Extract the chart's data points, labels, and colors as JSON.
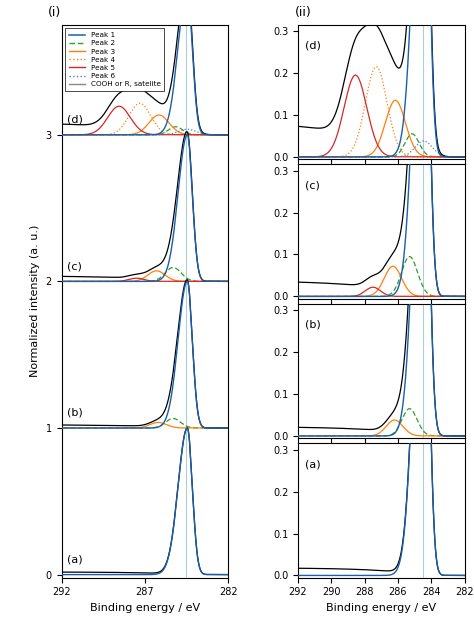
{
  "title_left": "(i)",
  "title_right": "(ii)",
  "xlabel_left": "Binding energy / eV",
  "xlabel_right": "Binding energy / eV",
  "ylabel": "Normalized intensity (a. u.)",
  "xlim_left": [
    292,
    282
  ],
  "xlim_right": [
    292,
    282
  ],
  "ylim_left": [
    0,
    3.75
  ],
  "yticks_left": [
    0,
    1,
    2,
    3
  ],
  "yticks_right": [
    0,
    0.1,
    0.2,
    0.3
  ],
  "xticks_left": [
    292,
    287,
    282
  ],
  "xticks_right": [
    292,
    290,
    288,
    286,
    284,
    282
  ],
  "vline_x": 284.5,
  "colors": {
    "peak1": "#1a5fa8",
    "peak2": "#2ca02c",
    "peak3": "#ff7f0e",
    "peak4": "#ff7f0e",
    "peak5": "#d62728",
    "peak6": "#5577cc",
    "satellite": "#888888",
    "total": "#000000",
    "vline": "#aaccdd"
  },
  "legend_entries": [
    "Peak 1",
    "Peak 2",
    "Peak 3",
    "Peak 4",
    "Peak 5",
    "Peak 6",
    "COOH or R, satelite"
  ]
}
